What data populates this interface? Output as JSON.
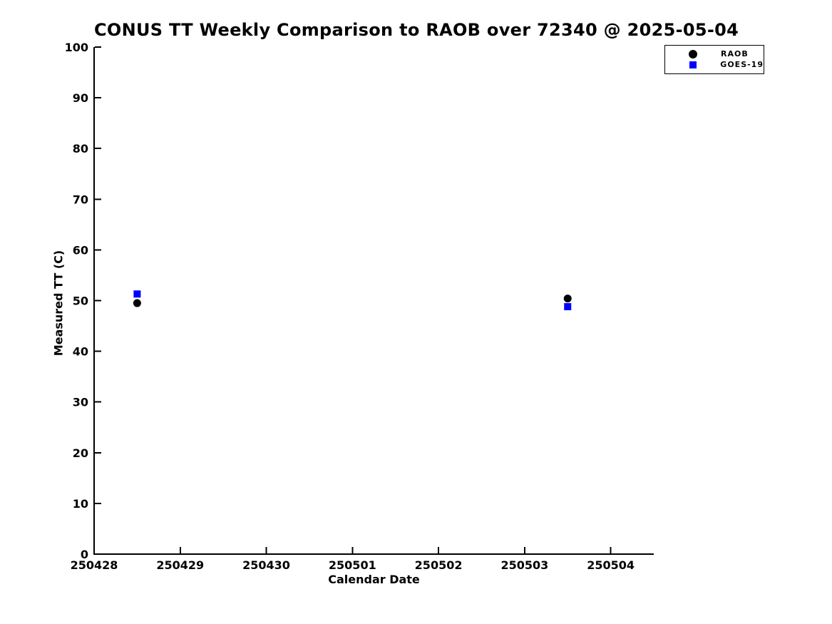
{
  "chart_data": {
    "type": "scatter",
    "title": "CONUS TT Weekly Comparison to RAOB over 72340 @ 2025-05-04",
    "xlabel": "Calendar Date",
    "ylabel": "Measured TT (C)",
    "x_unit": "days since 250428",
    "xlim": [
      0,
      6.5
    ],
    "ylim": [
      0,
      100
    ],
    "x_ticks": [
      0,
      1,
      2,
      3,
      4,
      5,
      6
    ],
    "x_tick_labels": [
      "250428",
      "250429",
      "250430",
      "250501",
      "250502",
      "250503",
      "250504"
    ],
    "y_ticks": [
      0,
      10,
      20,
      30,
      40,
      50,
      60,
      70,
      80,
      90,
      100
    ],
    "grid": false,
    "legend_position": "top-right-outside",
    "axis_color": "#000000",
    "background_color": "#ffffff",
    "series": [
      {
        "name": "RAOB",
        "marker": "circle",
        "color": "#000000",
        "points": [
          {
            "x": 0.5,
            "x_date": "250428.5",
            "y": 49.5
          },
          {
            "x": 5.5,
            "x_date": "250503.5",
            "y": 50.4
          }
        ]
      },
      {
        "name": "GOES-19",
        "marker": "square",
        "color": "#0000ff",
        "points": [
          {
            "x": 0.5,
            "x_date": "250428.5",
            "y": 51.3
          },
          {
            "x": 5.5,
            "x_date": "250503.5",
            "y": 48.8
          }
        ]
      }
    ]
  }
}
